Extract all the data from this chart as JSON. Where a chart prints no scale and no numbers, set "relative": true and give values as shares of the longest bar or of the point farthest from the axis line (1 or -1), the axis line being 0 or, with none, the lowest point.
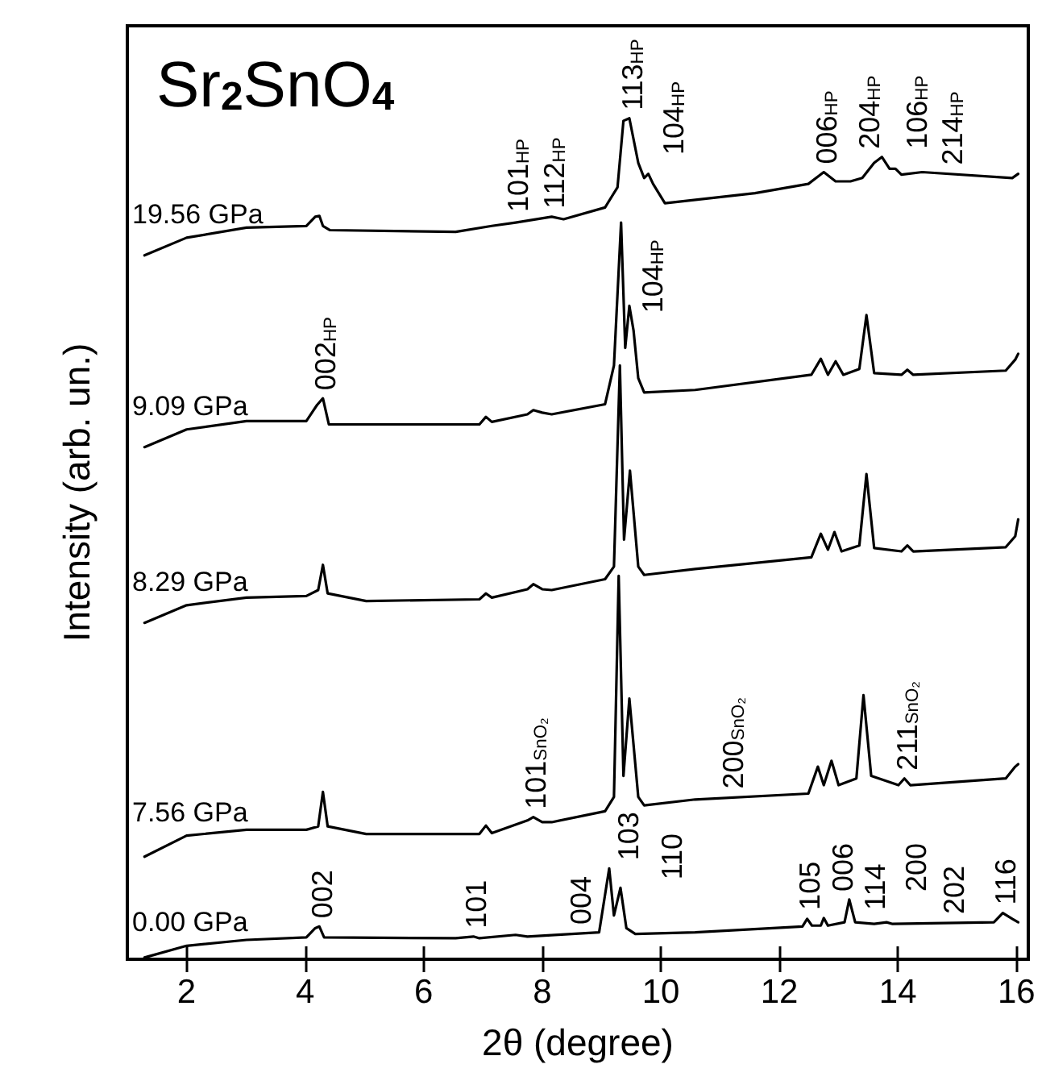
{
  "chart_data": {
    "type": "line",
    "relative": true,
    "title": "Sr$_{2}$SnO$_{4}$",
    "xlabel": "2θ (degree)",
    "ylabel": "Intensity (arb. un.)",
    "xlim": [
      1,
      16.2
    ],
    "xticks": [
      2,
      4,
      6,
      8,
      10,
      12,
      14,
      16
    ],
    "grid": false,
    "legend": false,
    "marker": "none",
    "line_style": "solid",
    "series": [
      {
        "name": "19.56 GPa",
        "color": "#000000",
        "x": [
          1.29,
          2.0,
          3.01,
          4.02,
          4.17,
          4.24,
          4.3,
          4.42,
          6.54,
          7.15,
          7.55,
          8.16,
          8.36,
          9.06,
          9.27,
          9.37,
          9.47,
          9.62,
          9.72,
          9.79,
          9.87,
          10.07,
          11.59,
          12.49,
          12.75,
          12.95,
          13.2,
          13.4,
          13.6,
          13.73,
          13.86,
          13.96,
          14.06,
          14.41,
          15.93,
          16.03
        ],
        "values": [
          0.837,
          0.858,
          0.87,
          0.872,
          0.883,
          0.884,
          0.872,
          0.867,
          0.865,
          0.872,
          0.876,
          0.883,
          0.88,
          0.894,
          0.918,
          0.997,
          1.0,
          0.947,
          0.929,
          0.934,
          0.922,
          0.899,
          0.911,
          0.922,
          0.936,
          0.925,
          0.925,
          0.929,
          0.947,
          0.954,
          0.94,
          0.94,
          0.933,
          0.936,
          0.929,
          0.934
        ]
      },
      {
        "name": "9.09 GPa",
        "color": "#000000",
        "x": [
          1.29,
          2.0,
          3.01,
          4.02,
          4.2,
          4.3,
          4.4,
          5.03,
          6.94,
          7.05,
          7.15,
          7.75,
          7.85,
          8.0,
          8.16,
          9.06,
          9.21,
          9.33,
          9.4,
          9.47,
          9.54,
          9.62,
          9.72,
          10.58,
          12.54,
          12.7,
          12.82,
          12.95,
          13.08,
          13.35,
          13.47,
          13.6,
          14.06,
          14.16,
          14.26,
          15.82,
          15.98,
          16.03
        ],
        "values": [
          0.609,
          0.63,
          0.64,
          0.64,
          0.659,
          0.667,
          0.636,
          0.636,
          0.636,
          0.645,
          0.639,
          0.648,
          0.653,
          0.65,
          0.648,
          0.66,
          0.706,
          0.876,
          0.727,
          0.777,
          0.748,
          0.691,
          0.674,
          0.677,
          0.695,
          0.714,
          0.695,
          0.711,
          0.695,
          0.702,
          0.766,
          0.697,
          0.695,
          0.701,
          0.695,
          0.7,
          0.713,
          0.72
        ]
      },
      {
        "name": "8.29 GPa",
        "color": "#000000",
        "x": [
          1.29,
          2.0,
          3.01,
          4.02,
          4.22,
          4.3,
          4.38,
          5.03,
          6.94,
          7.05,
          7.15,
          7.75,
          7.85,
          8.0,
          8.16,
          9.06,
          9.21,
          9.31,
          9.38,
          9.48,
          9.62,
          9.72,
          10.58,
          12.54,
          12.7,
          12.82,
          12.93,
          13.05,
          13.35,
          13.47,
          13.6,
          14.06,
          14.16,
          14.26,
          15.82,
          15.98,
          16.03
        ],
        "values": [
          0.4,
          0.421,
          0.43,
          0.432,
          0.439,
          0.469,
          0.435,
          0.426,
          0.428,
          0.435,
          0.43,
          0.44,
          0.446,
          0.44,
          0.439,
          0.452,
          0.467,
          0.706,
          0.499,
          0.581,
          0.467,
          0.457,
          0.464,
          0.478,
          0.506,
          0.487,
          0.508,
          0.485,
          0.492,
          0.577,
          0.489,
          0.485,
          0.492,
          0.485,
          0.49,
          0.503,
          0.523
        ]
      },
      {
        "name": "7.56 GPa",
        "color": "#000000",
        "x": [
          1.29,
          2.0,
          3.01,
          4.02,
          4.22,
          4.3,
          4.38,
          5.03,
          6.94,
          7.05,
          7.15,
          7.75,
          7.85,
          8.0,
          8.16,
          9.06,
          9.21,
          9.29,
          9.37,
          9.47,
          9.62,
          9.72,
          10.58,
          12.49,
          12.65,
          12.75,
          12.88,
          13.0,
          13.3,
          13.42,
          13.55,
          14.01,
          14.11,
          14.21,
          15.82,
          15.98,
          16.03
        ],
        "values": [
          0.122,
          0.147,
          0.154,
          0.154,
          0.158,
          0.199,
          0.158,
          0.149,
          0.149,
          0.159,
          0.15,
          0.165,
          0.169,
          0.163,
          0.163,
          0.176,
          0.193,
          0.456,
          0.218,
          0.31,
          0.193,
          0.183,
          0.19,
          0.197,
          0.229,
          0.207,
          0.236,
          0.207,
          0.215,
          0.314,
          0.218,
          0.207,
          0.215,
          0.207,
          0.215,
          0.229,
          0.232
        ]
      },
      {
        "name": "0.00 GPa",
        "color": "#000000",
        "x": [
          1.29,
          2.0,
          3.01,
          4.02,
          4.17,
          4.24,
          4.32,
          6.54,
          6.84,
          6.94,
          7.55,
          7.75,
          8.96,
          9.13,
          9.21,
          9.32,
          9.42,
          9.57,
          10.58,
          12.39,
          12.47,
          12.55,
          12.7,
          12.75,
          12.82,
          13.1,
          13.18,
          13.28,
          13.6,
          13.81,
          13.91,
          15.62,
          15.77,
          15.93,
          16.03
        ],
        "values": [
          0.002,
          0.016,
          0.023,
          0.026,
          0.037,
          0.039,
          0.026,
          0.025,
          0.027,
          0.025,
          0.029,
          0.027,
          0.032,
          0.108,
          0.052,
          0.085,
          0.037,
          0.03,
          0.032,
          0.039,
          0.048,
          0.04,
          0.04,
          0.049,
          0.04,
          0.044,
          0.071,
          0.044,
          0.042,
          0.044,
          0.042,
          0.044,
          0.055,
          0.048,
          0.044
        ]
      }
    ],
    "annotations": [
      {
        "text": "002",
        "x": 4.24,
        "y": 0.039
      },
      {
        "text": "101",
        "x": 6.84,
        "y": 0.027
      },
      {
        "text": "004",
        "x": 8.6,
        "y": 0.031
      },
      {
        "text": "103",
        "x": 9.13,
        "y": 0.108
      },
      {
        "text": "110",
        "x": 9.32,
        "y": 0.085
      },
      {
        "text": "105",
        "x": 12.47,
        "y": 0.048
      },
      {
        "text": "006",
        "x": 12.75,
        "y": 0.049
      },
      {
        "text": "114",
        "x": 12.75,
        "y": 0.049
      },
      {
        "text": "200",
        "x": 13.18,
        "y": 0.071
      },
      {
        "text": "202",
        "x": 13.81,
        "y": 0.044
      },
      {
        "text": "116",
        "x": 15.77,
        "y": 0.055
      },
      {
        "text": "101$_{SnO₂}$",
        "x": 7.85,
        "y": 0.169
      },
      {
        "text": "200$_{SnO₂}$",
        "x": 11.18,
        "y": 0.192
      },
      {
        "text": "211$_{SnO₂}$",
        "x": 14.11,
        "y": 0.215
      },
      {
        "text": "002$_{HP}$",
        "x": 4.3,
        "y": 0.667
      },
      {
        "text": "104$_{HP}$",
        "x": 9.54,
        "y": 0.748
      },
      {
        "text": "101$_{HP}$",
        "x": 7.55,
        "y": 0.876
      },
      {
        "text": "112$_{HP}$",
        "x": 8.16,
        "y": 0.883
      },
      {
        "text": "113$_{HP}$",
        "x": 9.47,
        "y": 1.0
      },
      {
        "text": "104$_{HP}$",
        "x": 9.62,
        "y": 0.947
      },
      {
        "text": "006$_{HP}$",
        "x": 12.75,
        "y": 0.936
      },
      {
        "text": "204$_{HP}$",
        "x": 13.2,
        "y": 0.925
      },
      {
        "text": "106$_{HP}$",
        "x": 13.73,
        "y": 0.954
      },
      {
        "text": "214$_{HP}$",
        "x": 14.06,
        "y": 0.933
      }
    ]
  }
}
